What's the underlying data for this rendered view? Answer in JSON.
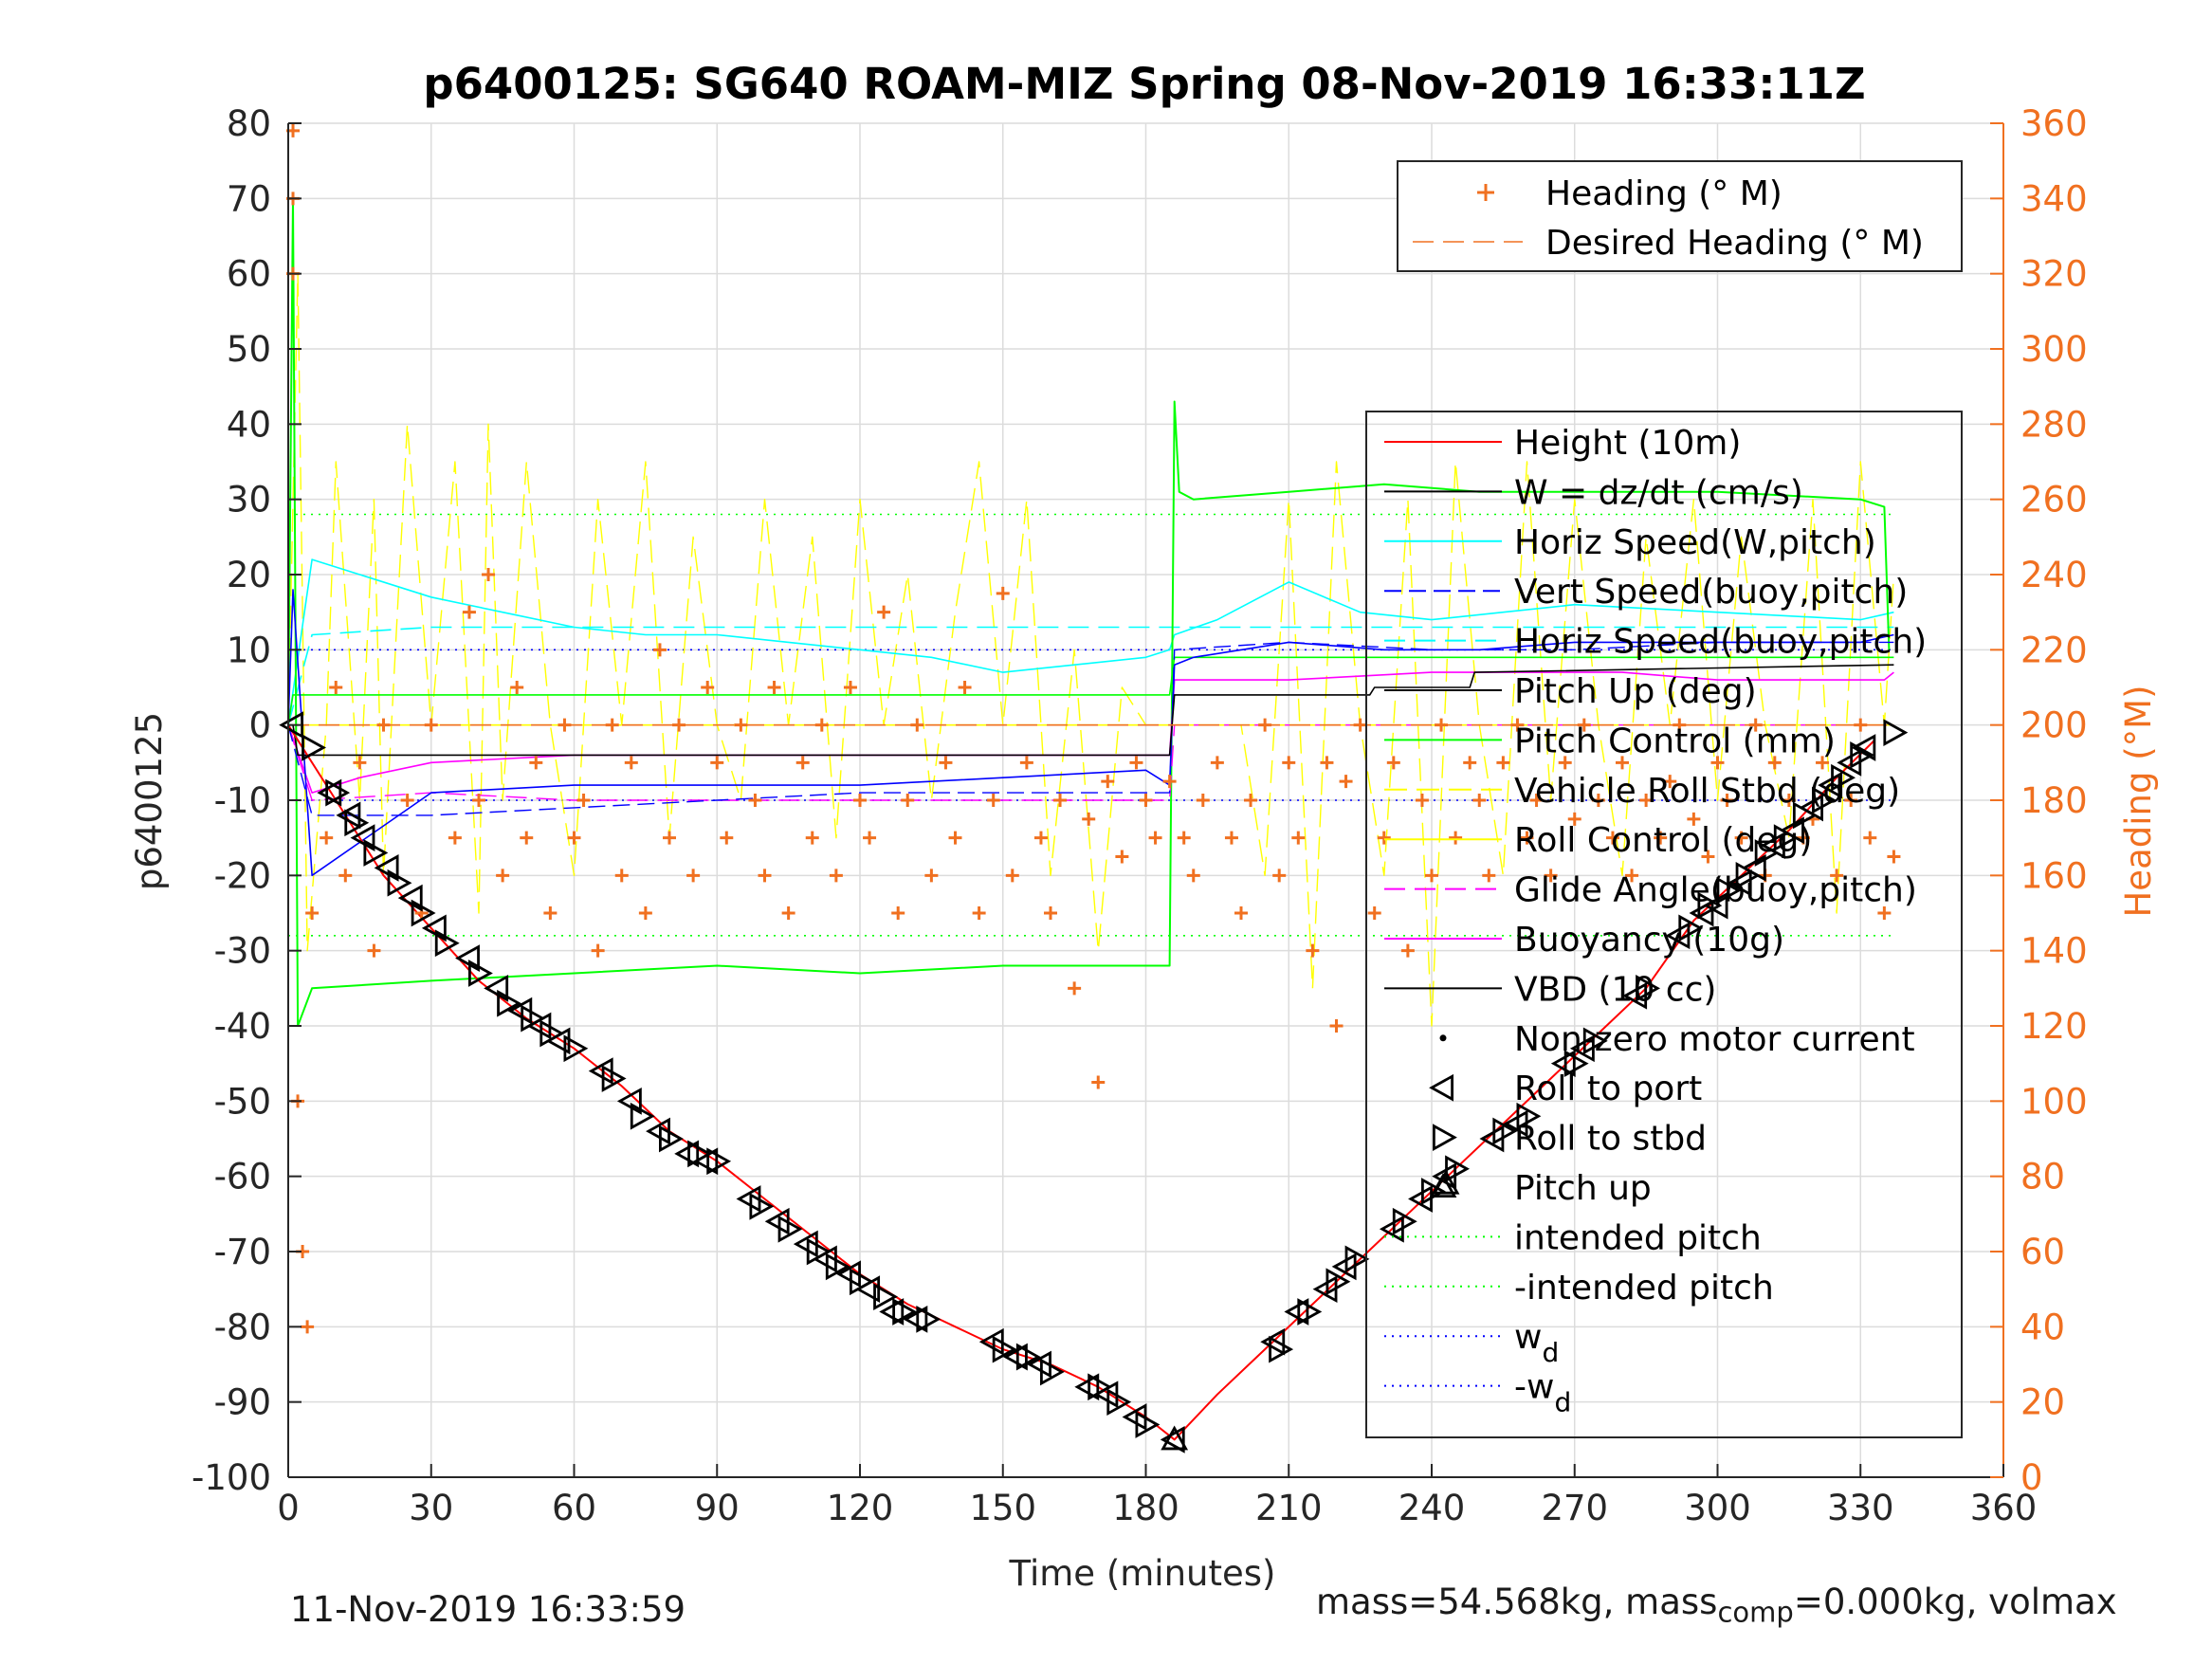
{
  "chart_data": {
    "type": "line",
    "title": "p6400125: SG640 ROAM-MIZ Spring 08-Nov-2019 16:33:11Z",
    "xlabel": "Time (minutes)",
    "ylabel": "p6400125",
    "y2label": "Heading (°M)",
    "xlim": [
      0,
      360
    ],
    "ylim": [
      -100,
      80
    ],
    "y2lim": [
      0,
      360
    ],
    "xticks": [
      0,
      30,
      60,
      90,
      120,
      150,
      180,
      210,
      240,
      270,
      300,
      330,
      360
    ],
    "yticks": [
      -100,
      -90,
      -80,
      -70,
      -60,
      -50,
      -40,
      -30,
      -20,
      -10,
      0,
      10,
      20,
      30,
      40,
      50,
      60,
      70,
      80
    ],
    "y2ticks": [
      0,
      20,
      40,
      60,
      80,
      100,
      120,
      140,
      160,
      180,
      200,
      220,
      240,
      260,
      280,
      300,
      320,
      340,
      360
    ],
    "grid": true,
    "colors": {
      "height": "#ff0000",
      "w": "#000000",
      "horiz_speed": "#00ffff",
      "vert_speed_buoy": "#0000ff",
      "horiz_speed_buoy": "#00ffff",
      "pitch_up": "#00ff00",
      "pitch_control": "#00ff00",
      "roll": "#ffff00",
      "roll_control": "#ffff00",
      "glide_angle": "#ff00ff",
      "buoyancy": "#ff00ff",
      "vbd": "#000000",
      "heading": "#f07020",
      "right_axis": "#f07020"
    },
    "legend_heading": {
      "placement": "top-right",
      "entries": [
        "Heading (° M)",
        "Desired Heading (° M)"
      ]
    },
    "legend_main": {
      "placement": "right",
      "entries": [
        "Height (10m)",
        "W = dz/dt (cm/s)",
        "Horiz Speed(W,pitch)",
        "Vert Speed(buoy,pitch)",
        "Horiz Speed(buoy,pitch)",
        "Pitch Up (deg)",
        "Pitch Control (mm)",
        "Vehicle Roll Stbd (deg)",
        "Roll Control (deg)",
        "Glide Angle(buoy,pitch)",
        "Buoyancy (10g)",
        "VBD (10 cc)",
        "Non-zero motor current",
        "Roll to port",
        "Roll to stbd",
        "Pitch up",
        "intended pitch",
        "-intended pitch",
        "w_d",
        "-w_d"
      ]
    },
    "series": [
      {
        "name": "Height (10m)",
        "x": [
          0,
          10,
          20,
          30,
          40,
          50,
          60,
          70,
          80,
          90,
          100,
          110,
          120,
          130,
          140,
          150,
          160,
          170,
          180,
          186,
          195,
          205,
          215,
          225,
          235,
          245,
          255,
          265,
          275,
          285,
          295,
          305,
          315,
          325,
          333
        ],
        "y": [
          0,
          -10,
          -20,
          -27,
          -34,
          -39,
          -43,
          -48,
          -54,
          -58,
          -63,
          -68,
          -73,
          -77,
          -80,
          -83,
          -85,
          -88,
          -92,
          -95,
          -89,
          -83,
          -77,
          -71,
          -65,
          -59,
          -53,
          -47,
          -41,
          -35,
          -26,
          -20,
          -14,
          -7,
          -2
        ]
      },
      {
        "name": "W = dz/dt (cm/s)",
        "x": [
          0,
          1,
          5,
          30,
          60,
          90,
          120,
          150,
          180,
          185,
          186,
          190,
          210,
          230,
          250,
          270,
          300,
          330,
          337
        ],
        "y": [
          0,
          18,
          -20,
          -9,
          -8,
          -8,
          -8,
          -7,
          -6,
          -8,
          8,
          9,
          11,
          10,
          10,
          11,
          11,
          11,
          12
        ]
      },
      {
        "name": "Horiz Speed(W,pitch)",
        "x": [
          0,
          5,
          15,
          30,
          45,
          60,
          75,
          90,
          105,
          120,
          135,
          150,
          165,
          180,
          185,
          186,
          195,
          210,
          225,
          240,
          255,
          270,
          300,
          330,
          337
        ],
        "y": [
          0,
          22,
          20,
          17,
          15,
          13,
          12,
          12,
          11,
          10,
          9,
          7,
          8,
          9,
          10,
          12,
          14,
          19,
          15,
          14,
          15,
          16,
          15,
          14,
          15
        ]
      },
      {
        "name": "Vert Speed(buoy,pitch)",
        "x": [
          0,
          5,
          30,
          60,
          90,
          120,
          150,
          180,
          185,
          186,
          210,
          240,
          270,
          300,
          330,
          337
        ],
        "y": [
          0,
          -12,
          -12,
          -11,
          -10,
          -9,
          -9,
          -9,
          -9,
          10,
          11,
          10,
          10,
          11,
          11,
          11
        ]
      },
      {
        "name": "Horiz Speed(buoy,pitch)",
        "x": [
          0,
          5,
          30,
          60,
          90,
          120,
          150,
          180,
          185,
          186,
          210,
          240,
          270,
          300,
          330,
          337
        ],
        "y": [
          0,
          12,
          13,
          13,
          13,
          13,
          13,
          13,
          13,
          13,
          13,
          13,
          13,
          13,
          13,
          13
        ]
      },
      {
        "name": "Pitch Up (deg)",
        "x": [
          0,
          1,
          2,
          5,
          30,
          60,
          90,
          120,
          150,
          180,
          185,
          186,
          187,
          190,
          210,
          230,
          250,
          270,
          300,
          330,
          335,
          336
        ],
        "y": [
          0,
          70,
          -40,
          -35,
          -34,
          -33,
          -32,
          -33,
          -32,
          -32,
          -32,
          43,
          31,
          30,
          31,
          32,
          31,
          31,
          31,
          30,
          29,
          10
        ]
      },
      {
        "name": "Pitch Control (mm)",
        "x": [
          0,
          1,
          185,
          186,
          337
        ],
        "y": [
          0,
          4,
          4,
          9,
          9
        ]
      },
      {
        "name": "Vehicle Roll Stbd (deg)",
        "x": [
          0,
          2,
          4,
          8,
          10,
          15,
          18,
          20,
          25,
          30,
          35,
          40,
          42,
          45,
          50,
          55,
          60,
          65,
          70,
          75,
          80,
          85,
          90,
          95,
          100,
          105,
          110,
          115,
          120,
          125,
          130,
          135,
          140,
          145,
          150,
          155,
          160,
          165,
          170,
          175,
          180,
          185,
          190,
          195,
          200,
          205,
          210,
          215,
          220,
          225,
          230,
          235,
          240,
          245,
          250,
          255,
          260,
          265,
          270,
          275,
          280,
          285,
          290,
          295,
          300,
          305,
          310,
          315,
          320,
          325,
          330,
          335,
          337
        ],
        "y": [
          0,
          60,
          -30,
          0,
          35,
          -10,
          30,
          -20,
          40,
          0,
          35,
          -25,
          40,
          -10,
          35,
          0,
          -20,
          30,
          0,
          35,
          -15,
          25,
          0,
          -10,
          30,
          0,
          25,
          -15,
          30,
          0,
          20,
          -10,
          15,
          35,
          0,
          30,
          -20,
          10,
          -30,
          5,
          0,
          0,
          0,
          0,
          0,
          -20,
          30,
          -35,
          35,
          0,
          -20,
          30,
          -40,
          35,
          0,
          -20,
          35,
          -10,
          30,
          0,
          -20,
          25,
          0,
          30,
          -10,
          25,
          0,
          -15,
          30,
          -25,
          35,
          0,
          20
        ]
      },
      {
        "name": "Roll Control (deg)",
        "x": [
          0,
          10,
          30,
          60,
          90,
          120,
          150,
          180,
          186,
          210,
          240,
          270,
          300,
          330,
          337
        ],
        "y": [
          0,
          0,
          0,
          0,
          0,
          0,
          0,
          0,
          0,
          0,
          0,
          0,
          0,
          0,
          0
        ]
      },
      {
        "name": "Glide Angle(buoy,pitch)",
        "x": [
          0,
          5,
          30,
          60,
          90,
          120,
          150,
          180,
          185,
          186,
          210,
          240,
          270,
          300,
          330,
          337
        ],
        "y": [
          0,
          -10,
          -9,
          -10,
          -10,
          -10,
          -10,
          -10,
          -10,
          0,
          0,
          0,
          0,
          0,
          0,
          0
        ]
      },
      {
        "name": "Buoyancy (10g)",
        "x": [
          0,
          5,
          15,
          30,
          60,
          90,
          120,
          150,
          180,
          185,
          186,
          210,
          240,
          260,
          280,
          300,
          320,
          335,
          337
        ],
        "y": [
          0,
          -9,
          -7,
          -5,
          -4,
          -4,
          -4,
          -4,
          -4,
          -4,
          6,
          6,
          7,
          7,
          7,
          6,
          6,
          6,
          7
        ]
      },
      {
        "name": "VBD (10 cc)",
        "x": [
          0,
          1,
          2,
          185,
          186,
          227,
          228,
          248,
          249,
          337
        ],
        "y": [
          0,
          0,
          -4,
          -4,
          4,
          4,
          5,
          5,
          7,
          8
        ]
      },
      {
        "name": "intended pitch",
        "x": [
          0,
          337
        ],
        "y": [
          28,
          28
        ]
      },
      {
        "name": "-intended pitch",
        "x": [
          0,
          337
        ],
        "y": [
          -28,
          -28
        ]
      },
      {
        "name": "w_d",
        "x": [
          0,
          337
        ],
        "y": [
          10,
          10
        ]
      },
      {
        "name": "-w_d",
        "x": [
          0,
          337
        ],
        "y": [
          -10,
          -10
        ]
      }
    ],
    "heading": {
      "name": "Heading (° M)",
      "x": [
        1,
        1,
        1,
        2,
        3,
        4,
        5,
        8,
        10,
        12,
        15,
        18,
        20,
        25,
        28,
        30,
        35,
        38,
        40,
        42,
        45,
        48,
        50,
        52,
        55,
        58,
        60,
        62,
        65,
        68,
        70,
        72,
        75,
        78,
        80,
        82,
        85,
        88,
        90,
        92,
        95,
        98,
        100,
        102,
        105,
        108,
        110,
        112,
        115,
        118,
        120,
        122,
        125,
        128,
        130,
        132,
        135,
        138,
        140,
        142,
        145,
        148,
        150,
        152,
        155,
        158,
        160,
        162,
        165,
        168,
        170,
        172,
        175,
        178,
        180,
        182,
        185,
        188,
        190,
        192,
        195,
        198,
        200,
        202,
        205,
        208,
        210,
        212,
        215,
        218,
        220,
        222,
        225,
        228,
        230,
        232,
        235,
        238,
        240,
        242,
        245,
        248,
        250,
        252,
        255,
        258,
        260,
        262,
        265,
        268,
        270,
        272,
        275,
        278,
        280,
        282,
        285,
        288,
        290,
        292,
        295,
        298,
        300,
        302,
        305,
        308,
        310,
        312,
        315,
        318,
        320,
        322,
        325,
        328,
        330,
        332,
        335,
        337
      ],
      "y": [
        358,
        340,
        320,
        100,
        60,
        40,
        150,
        170,
        210,
        160,
        190,
        140,
        200,
        180,
        150,
        200,
        170,
        230,
        180,
        240,
        160,
        210,
        170,
        190,
        150,
        200,
        170,
        180,
        140,
        200,
        160,
        190,
        150,
        220,
        170,
        200,
        160,
        210,
        190,
        170,
        200,
        180,
        160,
        210,
        150,
        190,
        170,
        200,
        160,
        210,
        180,
        170,
        230,
        150,
        180,
        200,
        160,
        190,
        170,
        210,
        150,
        180,
        235,
        160,
        190,
        170,
        150,
        180,
        130,
        175,
        105,
        185,
        165,
        190,
        180,
        170,
        185,
        170,
        160,
        180,
        190,
        170,
        150,
        180,
        200,
        160,
        190,
        170,
        140,
        190,
        120,
        185,
        200,
        150,
        170,
        190,
        140,
        180,
        160,
        200,
        170,
        190,
        180,
        160,
        190,
        200,
        170,
        180,
        160,
        190,
        175,
        200,
        180,
        170,
        190,
        160,
        180,
        170,
        185,
        200,
        175,
        165,
        190,
        180,
        170,
        200,
        160,
        190,
        180,
        170,
        175,
        190,
        160,
        180,
        200,
        170,
        150,
        165
      ]
    },
    "desired_heading": {
      "name": "Desired Heading (° M)",
      "x": [
        0,
        337
      ],
      "y": [
        200,
        200
      ]
    },
    "markers": {
      "roll_to_port": {
        "name": "Roll to port",
        "x": [
          1,
          9,
          13,
          16,
          21,
          26,
          31,
          38,
          44,
          49,
          53,
          57,
          66,
          72,
          78,
          84,
          88,
          97,
          103,
          109,
          113,
          118,
          122,
          127,
          132,
          148,
          153,
          158,
          168,
          172,
          178,
          186,
          207,
          212,
          218,
          222,
          232,
          238,
          243,
          253,
          258,
          268,
          272,
          283,
          292,
          297,
          300,
          305,
          308,
          312,
          316,
          320,
          324,
          328,
          331
        ],
        "y": [
          0,
          -9,
          -12,
          -15,
          -19,
          -23,
          -27,
          -31,
          -35,
          -38,
          -40,
          -42,
          -46,
          -50,
          -54,
          -57,
          -58,
          -63,
          -66,
          -69,
          -71,
          -73,
          -75,
          -78,
          -79,
          -82,
          -84,
          -85,
          -88,
          -89,
          -92,
          -95,
          -82,
          -78,
          -75,
          -72,
          -67,
          -63,
          -60,
          -55,
          -53,
          -45,
          -43,
          -36,
          -28,
          -25,
          -24,
          -21,
          -19,
          -16,
          -14,
          -11,
          -8,
          -5,
          -3
        ]
      },
      "roll_to_stbd": {
        "name": "Roll to stbd",
        "x": [
          5,
          10,
          14,
          18,
          23,
          28,
          33,
          40,
          46,
          51,
          55,
          60,
          68,
          74,
          80,
          86,
          90,
          99,
          105,
          111,
          115,
          120,
          125,
          129,
          134,
          150,
          155,
          160,
          170,
          174,
          180,
          208,
          214,
          220,
          224,
          234,
          240,
          245,
          255,
          260,
          270,
          274,
          285,
          294,
          298,
          302,
          306,
          310,
          314,
          318,
          322,
          326,
          330,
          337
        ],
        "y": [
          -3,
          -9,
          -13,
          -17,
          -21,
          -25,
          -29,
          -33,
          -37,
          -39,
          -41,
          -43,
          -47,
          -52,
          -55,
          -57,
          -58,
          -64,
          -67,
          -70,
          -72,
          -74,
          -76,
          -78,
          -79,
          -83,
          -84,
          -86,
          -88,
          -90,
          -93,
          -83,
          -78,
          -74,
          -71,
          -66,
          -62,
          -59,
          -54,
          -52,
          -45,
          -42,
          -35,
          -27,
          -24,
          -22,
          -20,
          -17,
          -15,
          -12,
          -10,
          -7,
          -4,
          -1
        ]
      },
      "pitch_up": {
        "name": "Pitch up",
        "x": [
          186,
          243
        ],
        "y": [
          -95,
          -61
        ]
      }
    },
    "annotations": {
      "timestamp": "11-Nov-2019 16:33:59",
      "mass_prefix": "mass=54.568kg, mass",
      "mass_sub": "comp",
      "mass_suffix": "=0.000kg, volmax"
    }
  }
}
